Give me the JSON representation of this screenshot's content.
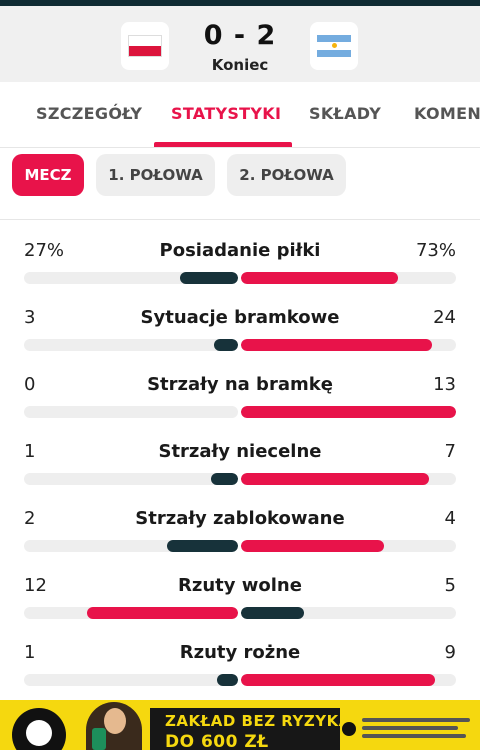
{
  "match": {
    "score": "0 - 2",
    "status": "Koniec",
    "home_flag": "poland-flag-icon",
    "away_flag": "argentina-flag-icon"
  },
  "tabs": [
    {
      "label": "SZCZEGÓŁY",
      "active": false
    },
    {
      "label": "STATYSTYKI",
      "active": true
    },
    {
      "label": "SKŁADY",
      "active": false
    },
    {
      "label": "KOMENTARZ",
      "active": false
    }
  ],
  "periods": [
    {
      "label": "MECZ",
      "active": true
    },
    {
      "label": "1. POŁOWA",
      "active": false
    },
    {
      "label": "2. POŁOWA",
      "active": false
    }
  ],
  "stats": [
    {
      "label": "Posiadanie piłki",
      "home": "27%",
      "away": "73%",
      "home_share": 0.27,
      "away_share": 0.73
    },
    {
      "label": "Sytuacje bramkowe",
      "home": "3",
      "away": "24",
      "home_share": 0.111,
      "away_share": 0.889
    },
    {
      "label": "Strzały na bramkę",
      "home": "0",
      "away": "13",
      "home_share": 0.0,
      "away_share": 1.0
    },
    {
      "label": "Strzały niecelne",
      "home": "1",
      "away": "7",
      "home_share": 0.125,
      "away_share": 0.875
    },
    {
      "label": "Strzały zablokowane",
      "home": "2",
      "away": "4",
      "home_share": 0.333,
      "away_share": 0.667
    },
    {
      "label": "Rzuty wolne",
      "home": "12",
      "away": "5",
      "home_share": 0.706,
      "away_share": 0.294
    },
    {
      "label": "Rzuty rożne",
      "home": "1",
      "away": "9",
      "home_share": 0.1,
      "away_share": 0.9
    }
  ],
  "ad": {
    "line1": "ZAKŁAD BEZ RYZYKA",
    "line2": "DO 600 ZŁ"
  },
  "colors": {
    "accent": "#e8134a",
    "dark_bar": "#17323a",
    "ad_yellow": "#f5d80f"
  }
}
